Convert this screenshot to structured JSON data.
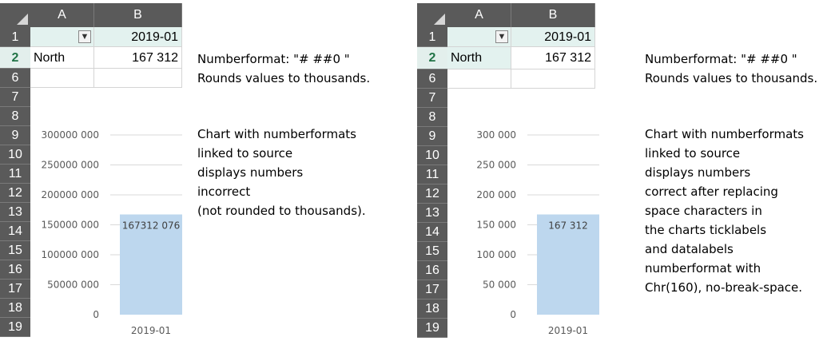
{
  "left": {
    "columns": [
      "A",
      "B"
    ],
    "rows": [
      "1",
      "2",
      "6",
      "7",
      "8",
      "9",
      "10",
      "11",
      "12",
      "13",
      "14",
      "15",
      "16",
      "17",
      "18",
      "19"
    ],
    "selected_row": "2",
    "cells": {
      "b1": "2019-01",
      "a2": "North",
      "b2": "167 312"
    },
    "chart_data": {
      "type": "bar",
      "categories": [
        "2019-01"
      ],
      "values": [
        167312076
      ],
      "data_labels": [
        "167312 076"
      ],
      "ylim": [
        0,
        300000000
      ],
      "yticks": [
        0,
        50000000,
        100000000,
        150000000,
        200000000,
        250000000,
        300000000
      ],
      "ytick_labels": [
        "0",
        "50000 000",
        "100000 000",
        "150000 000",
        "200000 000",
        "250000 000",
        "300000 000"
      ],
      "grid": true,
      "bar_color": "#bdd7ee"
    },
    "note": {
      "format": "Numberformat: \"# ##0 \"",
      "rounds": "Rounds values to thousands.",
      "lines": [
        "Chart with numberformats",
        "linked to source",
        "displays numbers",
        "incorrect",
        "(not rounded to thousands)."
      ]
    }
  },
  "right": {
    "columns": [
      "A",
      "B"
    ],
    "rows": [
      "1",
      "2",
      "6",
      "7",
      "8",
      "9",
      "10",
      "11",
      "12",
      "13",
      "14",
      "15",
      "16",
      "17",
      "18",
      "19"
    ],
    "selected_row": "2",
    "cells": {
      "b1": "2019-01",
      "a2": "North",
      "b2": "167 312"
    },
    "chart_data": {
      "type": "bar",
      "categories": [
        "2019-01"
      ],
      "values": [
        167312
      ],
      "data_labels": [
        "167 312"
      ],
      "ylim": [
        0,
        300000
      ],
      "yticks": [
        0,
        50000,
        100000,
        150000,
        200000,
        250000,
        300000
      ],
      "ytick_labels": [
        "0",
        "50 000",
        "100 000",
        "150 000",
        "200 000",
        "250 000",
        "300 000"
      ],
      "grid": true,
      "bar_color": "#bdd7ee"
    },
    "note": {
      "format": "Numberformat: \"# ##0 \"",
      "rounds": "Rounds values to thousands.",
      "lines": [
        "Chart with numberformats",
        "linked to source",
        "displays numbers",
        "correct after replacing",
        "space characters in",
        "the charts ticklabels",
        "and datalabels",
        "numberformat with",
        "Chr(160), no-break-space."
      ]
    }
  },
  "colors": {
    "header_bg": "#5a5a5a",
    "selected_header_bg": "#e3efec",
    "selected_header_text": "#217346",
    "highlight_cell": "#e3f2ef",
    "bar": "#bdd7ee",
    "gridline": "#d9d9d9"
  },
  "icons": {
    "filter": "filter-funnel-icon",
    "select_all": "select-all-triangle-icon"
  }
}
